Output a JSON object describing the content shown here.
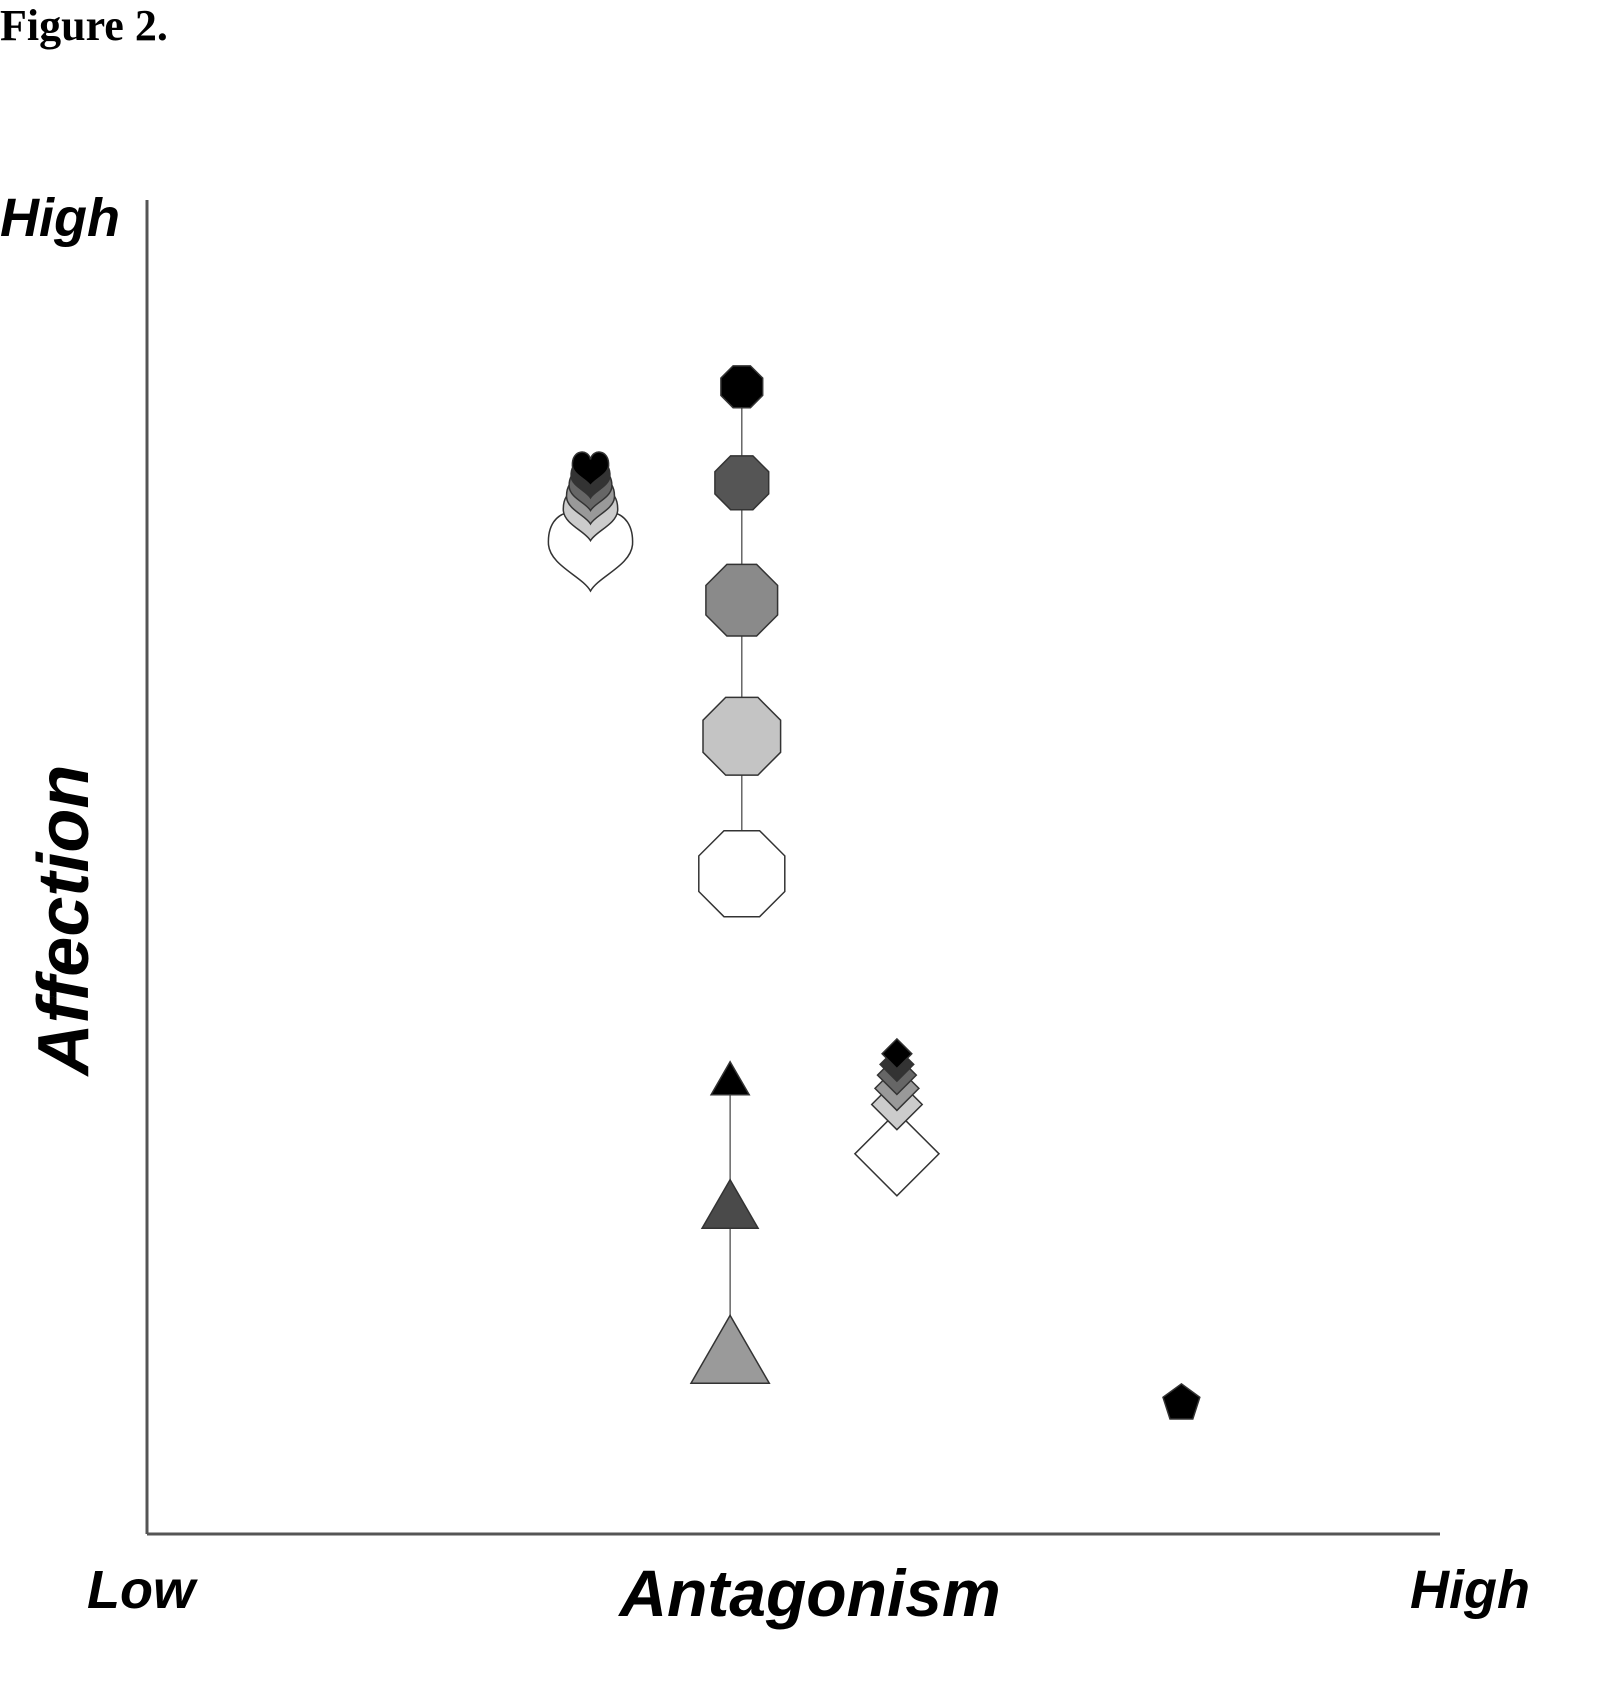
{
  "figure_label": "Figure 2.",
  "chart_data": {
    "type": "scatter",
    "xlabel": "Antagonism",
    "ylabel": "Affection",
    "x_low_label": "Low",
    "x_high_label": "High",
    "y_high_label": "High",
    "xlim": [
      0,
      100
    ],
    "ylim": [
      0,
      100
    ],
    "grid": false,
    "legend": "none",
    "series": [
      {
        "shape": "octagon",
        "connected": true,
        "points": [
          {
            "x": 46.0,
            "y": 86.0,
            "size": 3.5,
            "fill": "#000000"
          },
          {
            "x": 46.0,
            "y": 78.8,
            "size": 4.5,
            "fill": "#555555"
          },
          {
            "x": 46.0,
            "y": 70.0,
            "size": 6.0,
            "fill": "#8a8a8a"
          },
          {
            "x": 46.0,
            "y": 59.8,
            "size": 6.5,
            "fill": "#c4c4c4"
          },
          {
            "x": 46.0,
            "y": 49.5,
            "size": 7.2,
            "fill": "#ffffff"
          }
        ]
      },
      {
        "shape": "triangle",
        "connected": true,
        "points": [
          {
            "x": 45.1,
            "y": 34.0,
            "size": 3.4,
            "fill": "#000000"
          },
          {
            "x": 45.1,
            "y": 24.5,
            "size": 5.0,
            "fill": "#4a4a4a"
          },
          {
            "x": 45.1,
            "y": 13.5,
            "size": 7.0,
            "fill": "#9a9a9a"
          }
        ]
      },
      {
        "shape": "heart",
        "connected": false,
        "points": [
          {
            "x": 34.3,
            "y": 80.0,
            "size": 2.8,
            "fill": "#000000"
          },
          {
            "x": 34.3,
            "y": 79.2,
            "size": 3.0,
            "fill": "#333333"
          },
          {
            "x": 34.3,
            "y": 78.4,
            "size": 3.3,
            "fill": "#666666"
          },
          {
            "x": 34.3,
            "y": 77.6,
            "size": 3.7,
            "fill": "#999999"
          },
          {
            "x": 34.3,
            "y": 76.6,
            "size": 4.2,
            "fill": "#cccccc"
          },
          {
            "x": 34.3,
            "y": 74.0,
            "size": 6.5,
            "fill": "#ffffff"
          }
        ]
      },
      {
        "shape": "diamond",
        "connected": false,
        "points": [
          {
            "x": 58.0,
            "y": 36.0,
            "size": 2.3,
            "fill": "#000000"
          },
          {
            "x": 58.0,
            "y": 35.2,
            "size": 2.6,
            "fill": "#333333"
          },
          {
            "x": 58.0,
            "y": 34.4,
            "size": 3.0,
            "fill": "#666666"
          },
          {
            "x": 58.0,
            "y": 33.4,
            "size": 3.4,
            "fill": "#999999"
          },
          {
            "x": 58.0,
            "y": 32.2,
            "size": 3.9,
            "fill": "#cccccc"
          },
          {
            "x": 58.0,
            "y": 28.5,
            "size": 6.5,
            "fill": "#ffffff"
          }
        ]
      },
      {
        "shape": "pentagon",
        "connected": false,
        "points": [
          {
            "x": 80.0,
            "y": 9.8,
            "size": 3.0,
            "fill": "#000000"
          }
        ]
      }
    ]
  }
}
